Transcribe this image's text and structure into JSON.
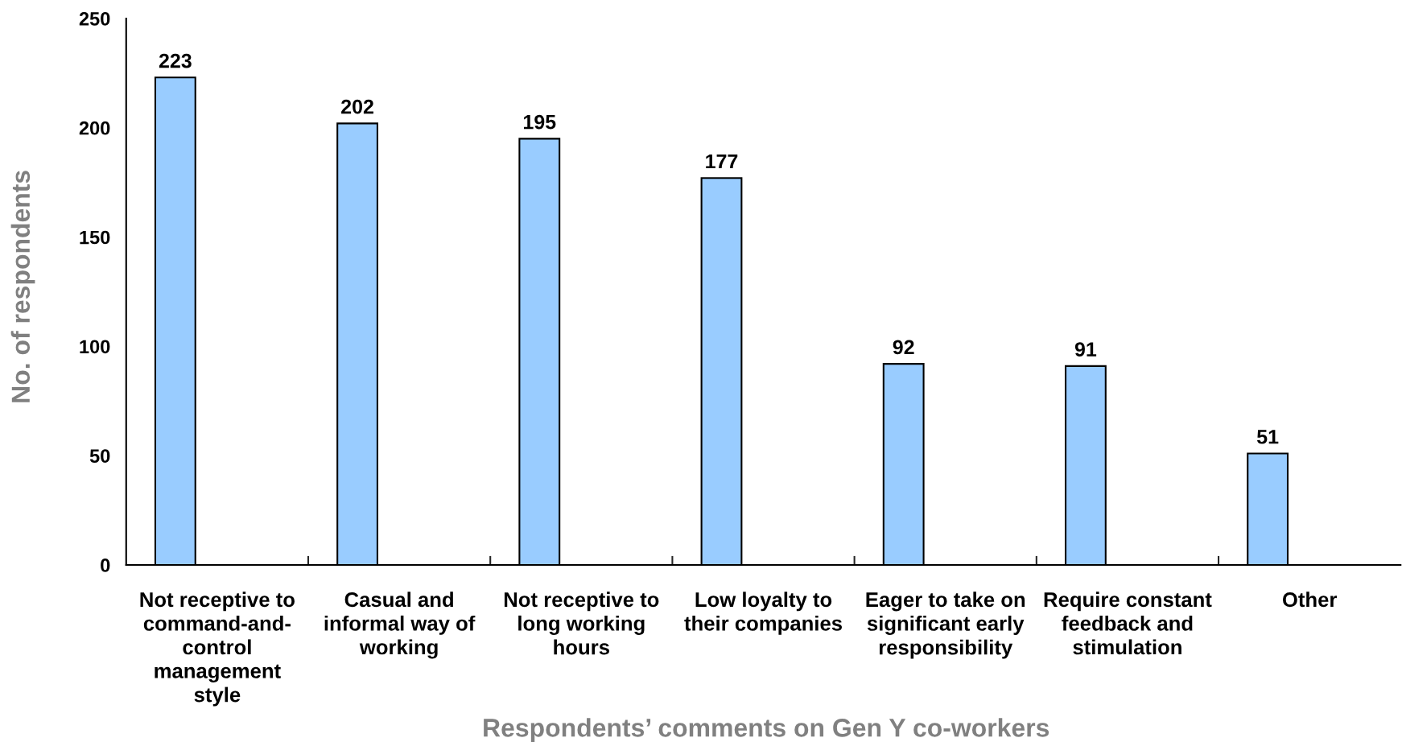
{
  "chart_data": {
    "type": "bar",
    "xlabel": "Respondents’ comments on Gen Y co-workers",
    "ylabel": "No. of respondents",
    "categories": [
      "Not receptive to\ncommand-and-\ncontrol\nmanagement\nstyle",
      "Casual and\ninformal way of\nworking",
      "Not receptive to\nlong working\nhours",
      "Low loyalty to\ntheir companies",
      "Eager to take on\nsignificant early\nresponsibility",
      "Require constant\nfeedback and\nstimulation",
      "Other"
    ],
    "values": [
      223,
      202,
      195,
      177,
      92,
      91,
      51
    ],
    "color": "#99ccff",
    "ylim": [
      0,
      250
    ],
    "yticks": [
      0,
      50,
      100,
      150,
      200,
      250
    ],
    "data_labels": true
  }
}
